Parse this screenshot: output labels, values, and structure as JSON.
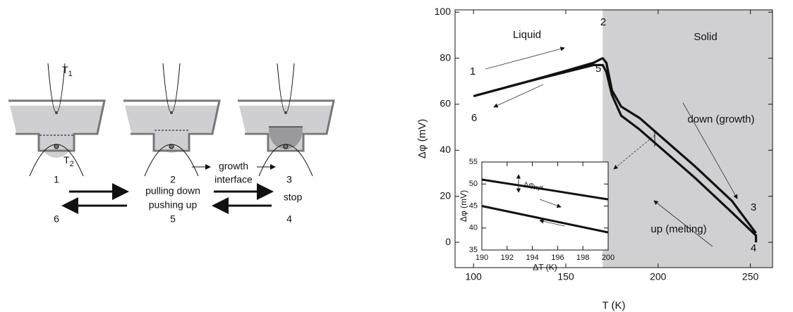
{
  "diagram": {
    "t1": {
      "main": "T",
      "sub": "1"
    },
    "t2": {
      "main": "T",
      "sub": "2"
    },
    "steps": [
      "1",
      "2",
      "3",
      "4",
      "5",
      "6"
    ],
    "growth": "growth",
    "interface": "interface",
    "pulling_down": "pulling down",
    "pushing_up": "pushing up",
    "stop": "stop"
  },
  "chart_data": [
    {
      "type": "line",
      "xlabel": "T (K)",
      "ylabel": "Δφ (mV)",
      "xlim": [
        90,
        262
      ],
      "ylim": [
        -11,
        101
      ],
      "xticks": [
        100,
        150,
        200,
        250
      ],
      "yticks": [
        0,
        20,
        40,
        60,
        80,
        100
      ],
      "shade_x": [
        170,
        262
      ],
      "shade_color": "#d0d0d2",
      "series": [
        {
          "color": "#111111",
          "x": [
            100,
            130,
            150,
            165,
            170,
            172,
            175,
            180,
            190,
            200,
            220,
            240,
            253
          ],
          "values": [
            63.5,
            70,
            74.5,
            78,
            80,
            78,
            66,
            59,
            54,
            47,
            33,
            18,
            4
          ]
        },
        {
          "color": "#111111",
          "x": [
            253,
            253,
            240,
            220,
            200,
            190,
            180,
            175,
            172,
            170,
            165,
            150,
            130,
            100
          ],
          "values": [
            0,
            3,
            13,
            28,
            42,
            49,
            55,
            64,
            74,
            77,
            77,
            74,
            70,
            63.5
          ]
        }
      ],
      "annotations": [
        "1",
        "2",
        "3",
        "4",
        "5",
        "6",
        "Liquid",
        "Solid",
        "down (growth)",
        "up (melting)"
      ]
    },
    {
      "type": "line",
      "xlabel": "ΔT (K)",
      "ylabel": "Δφ (mV)",
      "xlim": [
        190,
        200
      ],
      "ylim": [
        35,
        55
      ],
      "xticks": [
        190,
        192,
        194,
        196,
        198,
        200
      ],
      "yticks": [
        35,
        40,
        45,
        50,
        55
      ],
      "series": [
        {
          "color": "#111111",
          "x": [
            190,
            195,
            200
          ],
          "values": [
            51,
            48.8,
            46.5
          ]
        },
        {
          "color": "#111111",
          "x": [
            190,
            195,
            200
          ],
          "values": [
            45,
            42,
            39
          ]
        }
      ],
      "annotation": {
        "main": "Δφ",
        "sub": "hys"
      }
    }
  ]
}
